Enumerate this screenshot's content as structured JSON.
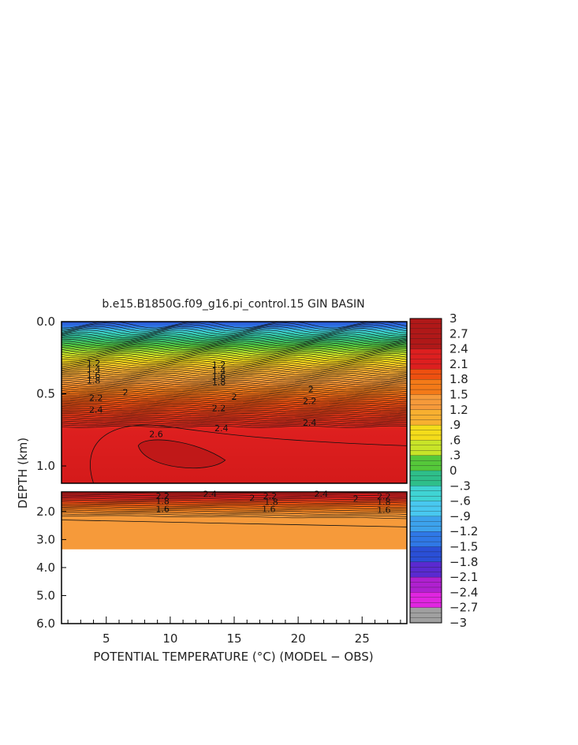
{
  "chart_data": {
    "type": "heatmap",
    "title": "b.e15.B1850G.f09_g16.pi_control.15 GIN BASIN",
    "xlabel": "POTENTIAL TEMPERATURE (°C) (MODEL − OBS)",
    "ylabel": "DEPTH (km)",
    "xlim": [
      1.5,
      28.5
    ],
    "x_ticks": [
      "5",
      "10",
      "15",
      "20",
      "25"
    ],
    "x_tick_values": [
      5,
      10,
      15,
      20,
      25
    ],
    "upper_panel": {
      "ylim": [
        0.0,
        1.12
      ],
      "y_ticks": [
        "0.0",
        "0.5",
        "1.0"
      ],
      "y_tick_values": [
        0.0,
        0.5,
        1.0
      ],
      "contour_labels": [
        {
          "text": "1.2",
          "x": 4.0,
          "y": 0.31
        },
        {
          "text": "1.4",
          "x": 4.0,
          "y": 0.35
        },
        {
          "text": "1.6",
          "x": 4.0,
          "y": 0.39
        },
        {
          "text": "1.8",
          "x": 4.0,
          "y": 0.43
        },
        {
          "text": "2",
          "x": 6.5,
          "y": 0.51
        },
        {
          "text": "2.2",
          "x": 4.2,
          "y": 0.55
        },
        {
          "text": "2.4",
          "x": 4.2,
          "y": 0.63
        },
        {
          "text": "2.6",
          "x": 8.9,
          "y": 0.8
        },
        {
          "text": "1.2",
          "x": 13.8,
          "y": 0.32
        },
        {
          "text": "1.4",
          "x": 13.8,
          "y": 0.36
        },
        {
          "text": "1.6",
          "x": 13.8,
          "y": 0.4
        },
        {
          "text": "1.8",
          "x": 13.8,
          "y": 0.44
        },
        {
          "text": "2",
          "x": 15.0,
          "y": 0.54
        },
        {
          "text": "2.2",
          "x": 13.8,
          "y": 0.62
        },
        {
          "text": "2.4",
          "x": 14.0,
          "y": 0.76
        },
        {
          "text": "2",
          "x": 21.0,
          "y": 0.49
        },
        {
          "text": "2.2",
          "x": 20.9,
          "y": 0.57
        },
        {
          "text": "2.4",
          "x": 20.9,
          "y": 0.72
        }
      ]
    },
    "lower_panel": {
      "ylim": [
        1.3,
        6.0
      ],
      "y_ticks": [
        "2.0",
        "3.0",
        "4.0",
        "5.0",
        "6.0"
      ],
      "y_tick_values": [
        2.0,
        3.0,
        4.0,
        5.0,
        6.0
      ],
      "data_bottom_depth": 3.35,
      "contour_labels": [
        {
          "text": "2.2",
          "x": 9.4,
          "y": 1.55
        },
        {
          "text": "2.4",
          "x": 13.1,
          "y": 1.48
        },
        {
          "text": "1.8",
          "x": 9.4,
          "y": 1.74
        },
        {
          "text": "1.6",
          "x": 9.4,
          "y": 2.02
        },
        {
          "text": "2",
          "x": 16.4,
          "y": 1.63
        },
        {
          "text": "2.2",
          "x": 17.8,
          "y": 1.55
        },
        {
          "text": "1.8",
          "x": 17.9,
          "y": 1.76
        },
        {
          "text": "1.6",
          "x": 17.7,
          "y": 2.02
        },
        {
          "text": "2.4",
          "x": 21.8,
          "y": 1.48
        },
        {
          "text": "2",
          "x": 24.5,
          "y": 1.65
        },
        {
          "text": "2.2",
          "x": 26.7,
          "y": 1.57
        },
        {
          "text": "1.8",
          "x": 26.7,
          "y": 1.77
        },
        {
          "text": "1.6",
          "x": 26.7,
          "y": 2.04
        }
      ]
    },
    "colorbar": {
      "range": [
        -3,
        3
      ],
      "tick_labels": [
        "3",
        "2.7",
        "2.4",
        "2.1",
        "1.8",
        "1.5",
        "1.2",
        ".9",
        ".6",
        ".3",
        "0",
        "−.3",
        "−.6",
        "−.9",
        "−1.2",
        "−1.5",
        "−1.8",
        "−2.1",
        "−2.4",
        "−2.7",
        "−3"
      ],
      "tick_values": [
        3,
        2.7,
        2.4,
        2.1,
        1.8,
        1.5,
        1.2,
        0.9,
        0.6,
        0.3,
        0,
        -0.3,
        -0.6,
        -0.9,
        -1.2,
        -1.5,
        -1.8,
        -2.1,
        -2.4,
        -2.7,
        -3
      ],
      "colors": {
        "3.0": "#b01818",
        "2.4": "#dd1f1f",
        "2.0": "#ee5010",
        "1.8": "#f47a18",
        "1.5": "#f69a3a",
        "1.2": "#f7b030",
        "0.9": "#f4dc1a",
        "0.6": "#c8e428",
        "0.3": "#55c83a",
        "0.0": "#2ebf8a",
        "-0.3": "#3fd4d4",
        "-0.6": "#48c8f0",
        "-0.9": "#3ca2ec",
        "-1.2": "#2f78e6",
        "-1.5": "#2a4fd6",
        "-1.8": "#5a2ad0",
        "-2.1": "#b020d0",
        "-2.4": "#e025e0",
        "-2.7": "#a0a0a0",
        "-3.0": "#707070"
      }
    }
  }
}
